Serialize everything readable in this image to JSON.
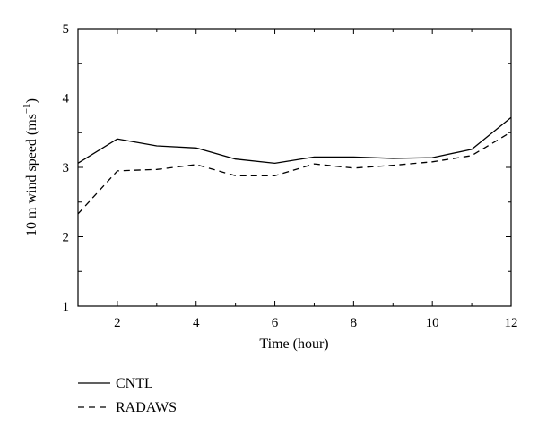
{
  "chart_data": {
    "type": "line",
    "xlabel": "Time (hour)",
    "ylabel": {
      "main": "10 m wind speed (ms",
      "sup": "−1",
      "close": ")"
    },
    "xlim": [
      1,
      12
    ],
    "ylim": [
      1,
      5
    ],
    "xticks": [
      "2",
      "4",
      "6",
      "8",
      "10",
      "12"
    ],
    "yticks": [
      "1",
      "2",
      "3",
      "4",
      "5"
    ],
    "grid": false,
    "legend_position": "bottom-left, below plot",
    "series": [
      {
        "name": "CNTL",
        "style": "solid",
        "x": [
          1,
          2,
          3,
          4,
          5,
          6,
          7,
          8,
          9,
          10,
          11,
          12
        ],
        "y": [
          3.06,
          3.41,
          3.31,
          3.28,
          3.12,
          3.06,
          3.15,
          3.15,
          3.13,
          3.14,
          3.26,
          3.72
        ]
      },
      {
        "name": "RADAWS",
        "style": "dashed",
        "x": [
          1,
          2,
          3,
          4,
          5,
          6,
          7,
          8,
          9,
          10,
          11,
          12
        ],
        "y": [
          2.33,
          2.95,
          2.97,
          3.04,
          2.88,
          2.88,
          3.05,
          2.99,
          3.03,
          3.08,
          3.17,
          3.51
        ]
      }
    ]
  }
}
